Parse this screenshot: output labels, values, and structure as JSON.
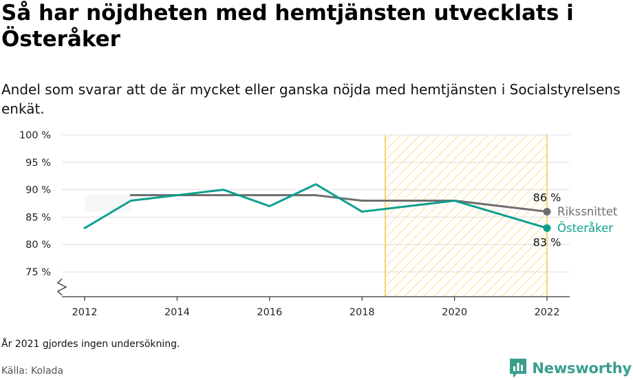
{
  "title": "Så har nöjdheten med hemtjänsten utvecklats i Österåker",
  "subtitle": "Andel som svarar att de är mycket eller ganska nöjda med hemtjänsten i Socialstyrelsens enkät.",
  "note": "År 2021 gjordes ingen undersökning.",
  "source": "Källa: Kolada",
  "brand": {
    "name": "Newsworthy",
    "logo_icon": "bar-chart-speech-bubble-icon",
    "color": "#3a9e8d"
  },
  "chart_data": {
    "type": "line",
    "x_ticks": [
      2012,
      2014,
      2016,
      2018,
      2020,
      2022
    ],
    "y_ticks": [
      75,
      80,
      85,
      90,
      95,
      100
    ],
    "y_tick_labels": [
      "75 %",
      "80 %",
      "85 %",
      "90 %",
      "95 %",
      "100 %"
    ],
    "xlim": [
      2011.6,
      2022.5
    ],
    "ylim": [
      71,
      100
    ],
    "axis_break": true,
    "grid": true,
    "highlight_range": [
      2018.5,
      2022
    ],
    "highlight_color": "#f5c542",
    "series": [
      {
        "name": "Rikssnittet",
        "color": "#6e6e6e",
        "x": [
          2013,
          2014,
          2015,
          2016,
          2017,
          2018,
          2019,
          2020,
          2022
        ],
        "y": [
          89,
          89,
          89,
          89,
          89,
          88,
          88,
          88,
          86
        ],
        "end_label": "86 %"
      },
      {
        "name": "Österåker",
        "color": "#0ba08c",
        "x": [
          2012,
          2013,
          2014,
          2015,
          2016,
          2017,
          2018,
          2020,
          2022
        ],
        "y": [
          83,
          88,
          89,
          90,
          87,
          91,
          86,
          88,
          83
        ],
        "end_label": "83 %"
      }
    ]
  }
}
